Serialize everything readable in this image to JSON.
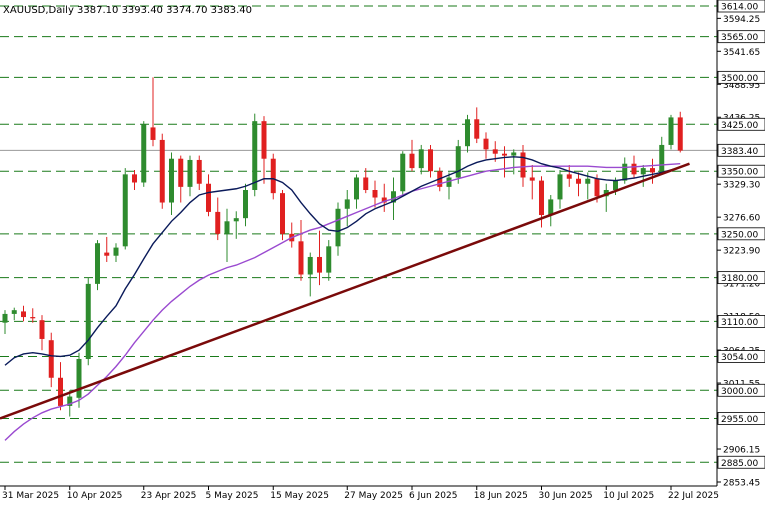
{
  "chart_data": {
    "type": "candlestick",
    "title": "XAUUSD,Daily  3387.10 3393.40 3374.70 3383.40",
    "symbol": "XAUUSD",
    "timeframe": "Daily",
    "ohlc_last": {
      "open": 3387.1,
      "high": 3393.4,
      "low": 3374.7,
      "close": 3383.4
    },
    "current_price_label": "3383.40",
    "ylim": [
      2853.45,
      3614.0
    ],
    "y_ticks": [
      "3594.25",
      "3541.65",
      "3488.95",
      "3436.25",
      "3329.30",
      "3276.60",
      "3223.90",
      "3171.20",
      "3118.50",
      "3064.25",
      "3011.55",
      "2958.85",
      "2906.15",
      "2853.45"
    ],
    "x_ticks": [
      "31 Mar 2025",
      "10 Apr 2025",
      "23 Apr 2025",
      "5 May 2025",
      "15 May 2025",
      "27 May 2025",
      "6 Jun 2025",
      "18 Jun 2025",
      "30 Jun 2025",
      "10 Jul 2025",
      "22 Jul 2025"
    ],
    "levels": [
      3614.0,
      3565.0,
      3500.0,
      3425.0,
      3350.0,
      3250.0,
      3180.0,
      3110.0,
      3054.0,
      3000.0,
      2955.0,
      2885.0
    ],
    "level_labels": [
      "3614.00",
      "3565.00",
      "3500.00",
      "3425.00",
      "3350.00",
      "3250.00",
      "3180.00",
      "3110.00",
      "3054.00",
      "3000.00",
      "2955.00",
      "2885.00"
    ],
    "candles": [
      [
        3108,
        3128,
        3090,
        3122
      ],
      [
        3122,
        3132,
        3112,
        3128
      ],
      [
        3126,
        3135,
        3110,
        3117
      ],
      [
        3117,
        3131,
        3108,
        3115
      ],
      [
        3112,
        3120,
        3064,
        3082
      ],
      [
        3080,
        3092,
        3005,
        3020
      ],
      [
        3020,
        3045,
        2968,
        2975
      ],
      [
        2975,
        3000,
        2958,
        2990
      ],
      [
        2988,
        3060,
        2972,
        3050
      ],
      [
        3050,
        3180,
        3040,
        3170
      ],
      [
        3170,
        3240,
        3160,
        3235
      ],
      [
        3220,
        3245,
        3205,
        3215
      ],
      [
        3215,
        3235,
        3205,
        3228
      ],
      [
        3230,
        3355,
        3225,
        3345
      ],
      [
        3345,
        3352,
        3320,
        3332
      ],
      [
        3332,
        3430,
        3325,
        3425
      ],
      [
        3420,
        3500,
        3390,
        3400
      ],
      [
        3400,
        3410,
        3290,
        3300
      ],
      [
        3300,
        3380,
        3280,
        3370
      ],
      [
        3370,
        3375,
        3300,
        3325
      ],
      [
        3325,
        3375,
        3310,
        3368
      ],
      [
        3368,
        3375,
        3320,
        3330
      ],
      [
        3330,
        3345,
        3278,
        3285
      ],
      [
        3285,
        3308,
        3240,
        3250
      ],
      [
        3250,
        3290,
        3205,
        3270
      ],
      [
        3270,
        3286,
        3242,
        3275
      ],
      [
        3275,
        3330,
        3262,
        3320
      ],
      [
        3320,
        3442,
        3310,
        3430
      ],
      [
        3430,
        3438,
        3330,
        3370
      ],
      [
        3370,
        3378,
        3305,
        3315
      ],
      [
        3315,
        3320,
        3240,
        3250
      ],
      [
        3250,
        3268,
        3228,
        3238
      ],
      [
        3238,
        3272,
        3175,
        3185
      ],
      [
        3185,
        3220,
        3150,
        3213
      ],
      [
        3213,
        3255,
        3168,
        3188
      ],
      [
        3188,
        3240,
        3175,
        3230
      ],
      [
        3230,
        3300,
        3215,
        3290
      ],
      [
        3290,
        3320,
        3262,
        3305
      ],
      [
        3305,
        3345,
        3290,
        3340
      ],
      [
        3340,
        3355,
        3315,
        3320
      ],
      [
        3320,
        3335,
        3292,
        3308
      ],
      [
        3308,
        3330,
        3285,
        3300
      ],
      [
        3300,
        3340,
        3272,
        3318
      ],
      [
        3318,
        3382,
        3310,
        3378
      ],
      [
        3378,
        3400,
        3350,
        3355
      ],
      [
        3355,
        3392,
        3345,
        3385
      ],
      [
        3385,
        3392,
        3340,
        3350
      ],
      [
        3350,
        3356,
        3318,
        3325
      ],
      [
        3325,
        3348,
        3305,
        3340
      ],
      [
        3340,
        3400,
        3330,
        3390
      ],
      [
        3390,
        3440,
        3380,
        3433
      ],
      [
        3433,
        3452,
        3395,
        3402
      ],
      [
        3402,
        3412,
        3370,
        3385
      ],
      [
        3385,
        3398,
        3365,
        3378
      ],
      [
        3378,
        3390,
        3340,
        3375
      ],
      [
        3375,
        3385,
        3345,
        3380
      ],
      [
        3380,
        3392,
        3325,
        3340
      ],
      [
        3340,
        3360,
        3305,
        3335
      ],
      [
        3335,
        3342,
        3260,
        3280
      ],
      [
        3280,
        3312,
        3262,
        3305
      ],
      [
        3305,
        3352,
        3290,
        3345
      ],
      [
        3345,
        3360,
        3325,
        3338
      ],
      [
        3338,
        3348,
        3310,
        3330
      ],
      [
        3330,
        3348,
        3305,
        3338
      ],
      [
        3338,
        3345,
        3300,
        3310
      ],
      [
        3310,
        3330,
        3285,
        3320
      ],
      [
        3320,
        3340,
        3312,
        3335
      ],
      [
        3335,
        3372,
        3330,
        3362
      ],
      [
        3362,
        3375,
        3338,
        3345
      ],
      [
        3345,
        3360,
        3325,
        3355
      ],
      [
        3355,
        3370,
        3330,
        3348
      ],
      [
        3348,
        3405,
        3345,
        3392
      ],
      [
        3392,
        3440,
        3385,
        3436
      ],
      [
        3436,
        3445,
        3380,
        3383
      ]
    ],
    "series": [
      {
        "name": "",
        "type": "line",
        "values": [
          3040,
          3052,
          3058,
          3060,
          3058,
          3055,
          3054,
          3056,
          3064,
          3080,
          3100,
          3118,
          3135,
          3162,
          3185,
          3210,
          3234,
          3252,
          3270,
          3284,
          3300,
          3312,
          3316,
          3318,
          3320,
          3322,
          3326,
          3332,
          3338,
          3338,
          3332,
          3320,
          3300,
          3282,
          3266,
          3256,
          3254,
          3260,
          3270,
          3282,
          3290,
          3296,
          3302,
          3310,
          3318,
          3326,
          3332,
          3338,
          3344,
          3350,
          3358,
          3364,
          3368,
          3370,
          3372,
          3373,
          3372,
          3368,
          3362,
          3358,
          3355,
          3350,
          3346,
          3342,
          3338,
          3336,
          3335,
          3337,
          3339,
          3342,
          3345,
          3348,
          3352,
          3356
        ]
      },
      {
        "name": "",
        "type": "line",
        "values": [
          2920,
          2934,
          2946,
          2956,
          2964,
          2970,
          2974,
          2978,
          2984,
          2994,
          3008,
          3022,
          3038,
          3056,
          3076,
          3094,
          3112,
          3128,
          3142,
          3154,
          3166,
          3176,
          3184,
          3190,
          3196,
          3200,
          3206,
          3212,
          3220,
          3228,
          3236,
          3244,
          3250,
          3256,
          3260,
          3266,
          3272,
          3278,
          3284,
          3290,
          3296,
          3302,
          3306,
          3312,
          3318,
          3322,
          3326,
          3330,
          3334,
          3338,
          3342,
          3346,
          3350,
          3352,
          3354,
          3356,
          3357,
          3358,
          3358,
          3358,
          3358,
          3358,
          3358,
          3358,
          3357,
          3356,
          3356,
          3356,
          3357,
          3358,
          3359,
          3360,
          3361,
          3362
        ]
      }
    ],
    "trendline": {
      "start": {
        "index": 0,
        "price": 2958
      },
      "end": {
        "index": 74,
        "price": 3362
      }
    },
    "grid": false,
    "colors": {
      "bull": "#2e8b2e",
      "bear": "#e02020",
      "levels": "#1a7a1a",
      "trendline": "#7a0a0a",
      "ma_fast": "#0a1a5a",
      "ma_slow": "#9a4ad0",
      "price_line": "#9a9a9a"
    }
  }
}
